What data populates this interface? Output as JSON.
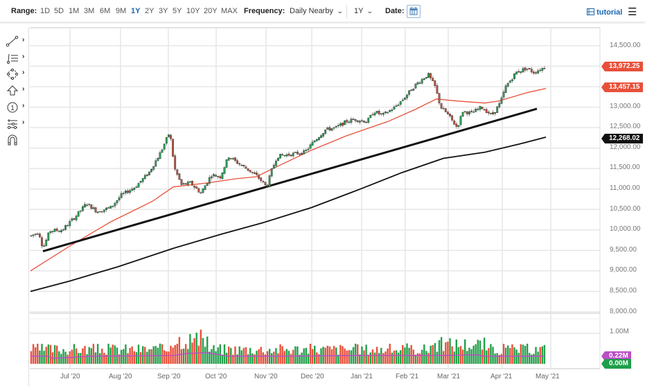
{
  "toolbar": {
    "range_label": "Range:",
    "ranges": [
      "1D",
      "5D",
      "1M",
      "3M",
      "6M",
      "9M",
      "1Y",
      "2Y",
      "3Y",
      "5Y",
      "10Y",
      "20Y",
      "MAX"
    ],
    "active_range": "1Y",
    "frequency_label": "Frequency:",
    "frequency_value": "Daily Nearby",
    "period_value": "1Y",
    "date_label": "Date:",
    "tutorial_label": "tutorial",
    "menu_icon": "hamburger-icon",
    "calendar_icon": "calendar-icon"
  },
  "left_tools": [
    {
      "name": "trendline-tool",
      "icon": "line-icon"
    },
    {
      "name": "fibonacci-tool",
      "icon": "fib-lines-icon"
    },
    {
      "name": "shapes-tool",
      "icon": "shape-icon"
    },
    {
      "name": "arrow-tool",
      "icon": "arrow-up-icon"
    },
    {
      "name": "annotation-tool",
      "icon": "numbered-circle-icon"
    },
    {
      "name": "measure-tool",
      "icon": "measure-icon"
    },
    {
      "name": "magnet-tool",
      "icon": "magnet-icon"
    }
  ],
  "colors": {
    "up": "#22a04b",
    "down": "#e8503a",
    "ma_red": "#e8503a",
    "ma_black": "#111111",
    "volume_avg": "#b94fc4",
    "grid": "#e6e6e6"
  },
  "price_badges": {
    "last": {
      "value": "13,972.25",
      "color": "#e8503a"
    },
    "ma50": {
      "value": "13,457.15",
      "color": "#e8503a"
    },
    "ma200": {
      "value": "12,268.02",
      "color": "#111111"
    }
  },
  "volume_badges": {
    "avg": {
      "value": "0.22M",
      "color": "#b94fc4"
    },
    "zero": {
      "value": "0.00M",
      "color": "#1e9e4a"
    }
  },
  "chart_data": {
    "type": "candlestick",
    "title": "",
    "y_axis": {
      "ticks": [
        "14,500.00",
        "14,000.00",
        "13,500.00",
        "13,000.00",
        "12,500.00",
        "12,000.00",
        "11,500.00",
        "11,000.00",
        "10,500.00",
        "10,000.00",
        "9,500.00",
        "9,000.00",
        "8,500.00",
        "8,000.00"
      ],
      "range": [
        8000,
        14700
      ]
    },
    "x_axis": {
      "ticks": [
        "Jul '20",
        "Aug '20",
        "Sep '20",
        "Oct '20",
        "Nov '20",
        "Dec '20",
        "Jan '21",
        "Feb '21",
        "Mar '21",
        "Apr '21",
        "May '21"
      ]
    },
    "price_approx_monthly": [
      {
        "date": "Jun '20 (start)",
        "close": 9800
      },
      {
        "date": "Jul '20",
        "close": 10200
      },
      {
        "date": "Aug '20",
        "close": 11000
      },
      {
        "date": "Sep '20 peak",
        "close": 12400
      },
      {
        "date": "Oct '20",
        "close": 11400
      },
      {
        "date": "Nov '20 low",
        "close": 11050
      },
      {
        "date": "Nov '20",
        "close": 12000
      },
      {
        "date": "Dec '20",
        "close": 12600
      },
      {
        "date": "Jan '21",
        "close": 12900
      },
      {
        "date": "Feb '21 peak",
        "close": 13800
      },
      {
        "date": "Mar '21 low",
        "close": 12400
      },
      {
        "date": "Apr '21",
        "close": 13900
      },
      {
        "date": "Last",
        "close": 13972.25
      }
    ],
    "overlays": [
      {
        "name": "MA (red)",
        "last": 13457.15
      },
      {
        "name": "MA (black)",
        "last": 12268.02
      },
      {
        "name": "Trendline",
        "from": 9480,
        "to": 12950
      }
    ],
    "volume": {
      "ticks": [
        "1.00M"
      ],
      "avg_last": "0.22M",
      "zero_label": "0.00M"
    }
  },
  "x_labels": [
    "Jul '20",
    "Aug '20",
    "Sep '20",
    "Oct '20",
    "Nov '20",
    "Dec '20",
    "Jan '21",
    "Feb '21",
    "Mar '21",
    "Apr '21",
    "May '21"
  ],
  "y_labels": [
    "14,500.00",
    "13,000.00",
    "12,500.00",
    "12,000.00",
    "11,500.00",
    "11,000.00",
    "10,500.00",
    "10,000.00",
    "9,500.00",
    "9,000.00",
    "8,500.00",
    "8,000.00"
  ],
  "vol_label": "1.00M"
}
